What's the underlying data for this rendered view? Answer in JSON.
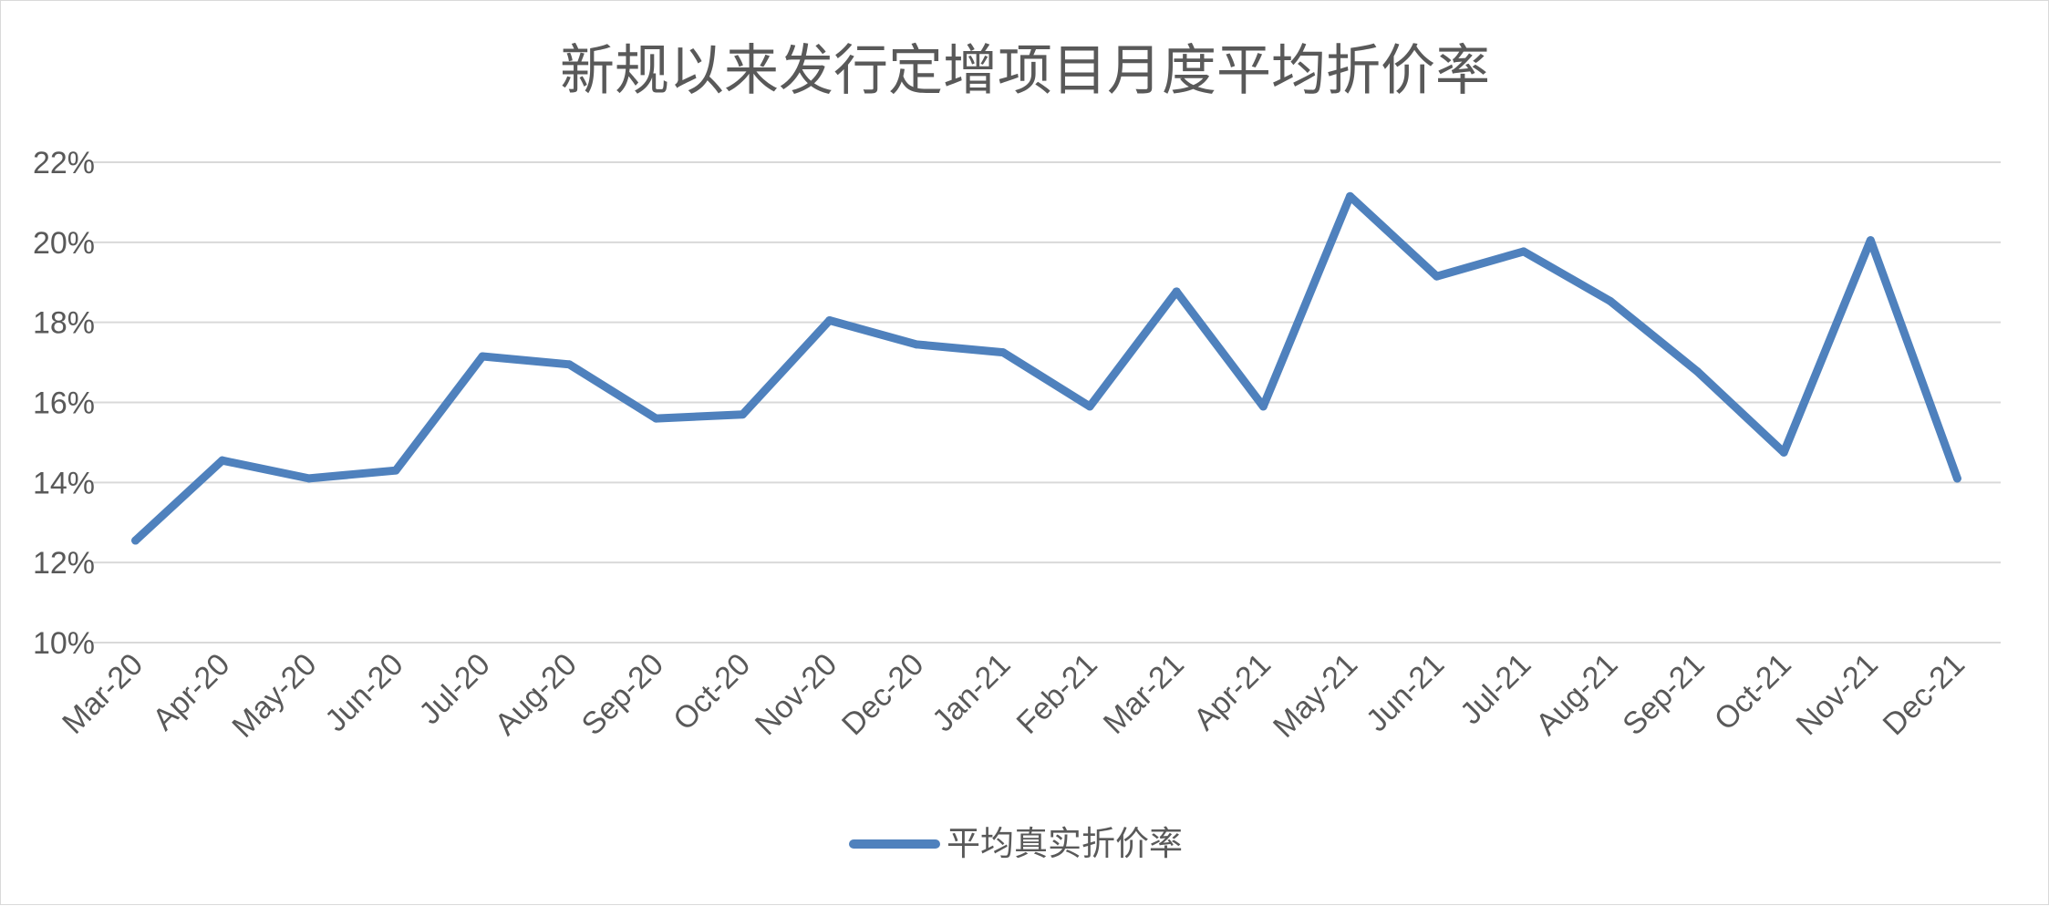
{
  "chart_data": {
    "type": "line",
    "title": "新规以来发行定增项目月度平均折价率",
    "xlabel": "",
    "ylabel": "",
    "categories": [
      "Mar-20",
      "Apr-20",
      "May-20",
      "Jun-20",
      "Jul-20",
      "Aug-20",
      "Sep-20",
      "Oct-20",
      "Nov-20",
      "Dec-20",
      "Jan-21",
      "Feb-21",
      "Mar-21",
      "Apr-21",
      "May-21",
      "Jun-21",
      "Jul-21",
      "Aug-21",
      "Sep-21",
      "Oct-21",
      "Nov-21",
      "Dec-21"
    ],
    "ylim": [
      0.1,
      0.22
    ],
    "yticks": [
      0.1,
      0.12,
      0.14,
      0.16,
      0.18,
      0.2,
      0.22
    ],
    "ytick_labels": [
      "10%",
      "12%",
      "14%",
      "16%",
      "18%",
      "20%",
      "22%"
    ],
    "grid": true,
    "legend_position": "bottom",
    "series": [
      {
        "name": "平均真实折价率",
        "color": "#4f81bd",
        "values": [
          0.1255,
          0.1455,
          0.141,
          0.143,
          0.1715,
          0.1695,
          0.156,
          0.157,
          0.1805,
          0.1745,
          0.1725,
          0.159,
          0.1877,
          0.159,
          0.2115,
          0.1915,
          0.1977,
          0.1853,
          0.1678,
          0.1475,
          0.2005,
          0.141
        ]
      }
    ]
  }
}
